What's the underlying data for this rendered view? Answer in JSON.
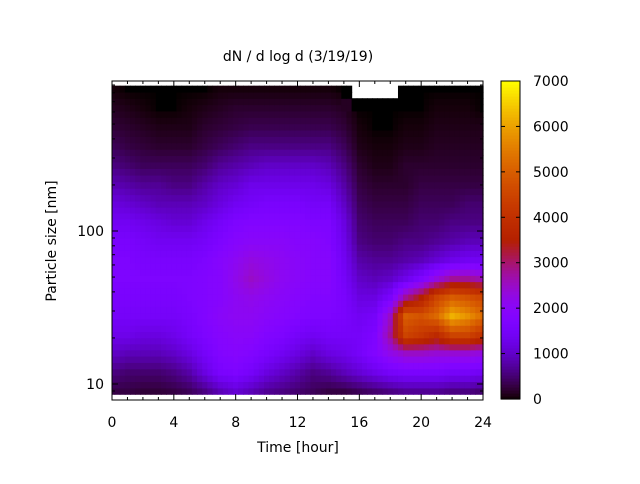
{
  "chart_data": {
    "type": "heatmap",
    "title": "dN / d log d (3/19/19)",
    "xlabel": "Time [hour]",
    "ylabel": "Particle size [nm]",
    "xlim": [
      0,
      24
    ],
    "ylim": [
      8,
      950
    ],
    "yscale": "log",
    "xticks": [
      0,
      4,
      8,
      12,
      16,
      20,
      24
    ],
    "xtick_labels": [
      "0",
      "4",
      "8",
      "12",
      "16",
      "20",
      "24"
    ],
    "yticks": [
      10,
      100
    ],
    "ytick_labels": [
      "10",
      "100"
    ],
    "colorbar": {
      "range": [
        0,
        7000
      ],
      "ticks": [
        0,
        1000,
        2000,
        3000,
        4000,
        5000,
        6000,
        7000
      ],
      "tick_labels": [
        "0",
        "1000",
        "2000",
        "3000",
        "4000",
        "5000",
        "6000",
        "7000"
      ],
      "colormap": "black-purple-red-yellow"
    },
    "x": [
      0,
      1,
      2,
      3,
      4,
      5,
      6,
      7,
      8,
      9,
      10,
      11,
      12,
      13,
      14,
      15,
      16,
      17,
      18,
      19,
      20,
      21,
      22,
      23,
      24
    ],
    "y": [
      9,
      12,
      16,
      21,
      28,
      37,
      49,
      65,
      86,
      115,
      150,
      200,
      270,
      360,
      480,
      640,
      850
    ],
    "z": [
      [
        300,
        300,
        250,
        250,
        300,
        400,
        600,
        900,
        1100,
        900,
        700,
        600,
        500,
        400,
        300,
        300,
        400,
        500,
        600,
        700,
        700,
        700,
        600,
        600,
        500
      ],
      [
        600,
        500,
        500,
        500,
        600,
        800,
        1200,
        1600,
        1700,
        1500,
        1200,
        1000,
        800,
        600,
        700,
        900,
        1100,
        1300,
        1500,
        1600,
        1600,
        1600,
        1500,
        1500,
        1400
      ],
      [
        1000,
        900,
        900,
        900,
        1000,
        1200,
        1500,
        1800,
        1900,
        1800,
        1600,
        1400,
        1200,
        1000,
        1200,
        1300,
        1500,
        1800,
        2200,
        2500,
        2500,
        2400,
        2400,
        2400,
        2300
      ],
      [
        1300,
        1300,
        1200,
        1200,
        1300,
        1500,
        1700,
        1900,
        2000,
        2000,
        1800,
        1700,
        1500,
        1400,
        1500,
        1500,
        1500,
        1700,
        2800,
        4500,
        4200,
        3800,
        4500,
        4500,
        4000
      ],
      [
        1500,
        1500,
        1500,
        1500,
        1500,
        1600,
        1800,
        2000,
        2100,
        2100,
        2000,
        1900,
        1800,
        1700,
        1700,
        1600,
        1400,
        1500,
        2500,
        5000,
        4800,
        5200,
        6200,
        5800,
        5200
      ],
      [
        1600,
        1600,
        1600,
        1600,
        1600,
        1700,
        1800,
        1900,
        2100,
        2200,
        2100,
        2000,
        1900,
        1800,
        1800,
        1600,
        1200,
        1200,
        1600,
        2800,
        3500,
        4500,
        5000,
        4800,
        4500
      ],
      [
        1700,
        1700,
        1700,
        1700,
        1700,
        1700,
        1800,
        1900,
        2200,
        2500,
        2300,
        2100,
        2000,
        1900,
        1900,
        1500,
        1000,
        900,
        1000,
        1300,
        1700,
        2300,
        2800,
        2800,
        2600
      ],
      [
        1700,
        1700,
        1600,
        1600,
        1600,
        1600,
        1700,
        1900,
        2100,
        2300,
        2200,
        2100,
        2000,
        1900,
        1900,
        1400,
        800,
        700,
        700,
        800,
        900,
        1100,
        1300,
        1400,
        1400
      ],
      [
        1600,
        1600,
        1500,
        1400,
        1400,
        1400,
        1500,
        1700,
        1900,
        2000,
        2000,
        2000,
        1900,
        1900,
        1800,
        1300,
        600,
        500,
        500,
        600,
        600,
        700,
        800,
        900,
        900
      ],
      [
        1400,
        1400,
        1300,
        1200,
        1100,
        1100,
        1300,
        1500,
        1700,
        1800,
        1800,
        1800,
        1800,
        1700,
        1700,
        1200,
        500,
        400,
        400,
        400,
        500,
        500,
        600,
        600,
        600
      ],
      [
        1200,
        1100,
        1000,
        900,
        900,
        900,
        1000,
        1200,
        1400,
        1500,
        1600,
        1600,
        1600,
        1500,
        1500,
        1000,
        400,
        300,
        300,
        300,
        400,
        400,
        400,
        500,
        500
      ],
      [
        900,
        800,
        700,
        700,
        600,
        600,
        800,
        1000,
        1100,
        1300,
        1300,
        1300,
        1300,
        1300,
        1200,
        800,
        300,
        200,
        200,
        200,
        300,
        300,
        300,
        300,
        300
      ],
      [
        600,
        500,
        400,
        400,
        400,
        400,
        500,
        700,
        800,
        900,
        1000,
        1000,
        1000,
        1000,
        900,
        600,
        200,
        100,
        100,
        200,
        200,
        200,
        200,
        200,
        200
      ],
      [
        400,
        300,
        250,
        200,
        200,
        200,
        300,
        400,
        500,
        600,
        600,
        600,
        600,
        600,
        600,
        400,
        100,
        50,
        50,
        100,
        100,
        150,
        150,
        150,
        150
      ],
      [
        250,
        200,
        150,
        100,
        100,
        100,
        200,
        250,
        300,
        350,
        350,
        350,
        350,
        350,
        350,
        250,
        50,
        0,
        0,
        50,
        50,
        100,
        100,
        100,
        100
      ],
      [
        150,
        100,
        50,
        0,
        0,
        50,
        100,
        150,
        200,
        200,
        200,
        200,
        200,
        200,
        200,
        150,
        0,
        0,
        0,
        0,
        0,
        50,
        50,
        50,
        0
      ],
      [
        50,
        0,
        0,
        0,
        0,
        0,
        0,
        50,
        50,
        50,
        50,
        50,
        50,
        50,
        50,
        0,
        null,
        null,
        null,
        0,
        0,
        0,
        0,
        0,
        0
      ]
    ]
  }
}
